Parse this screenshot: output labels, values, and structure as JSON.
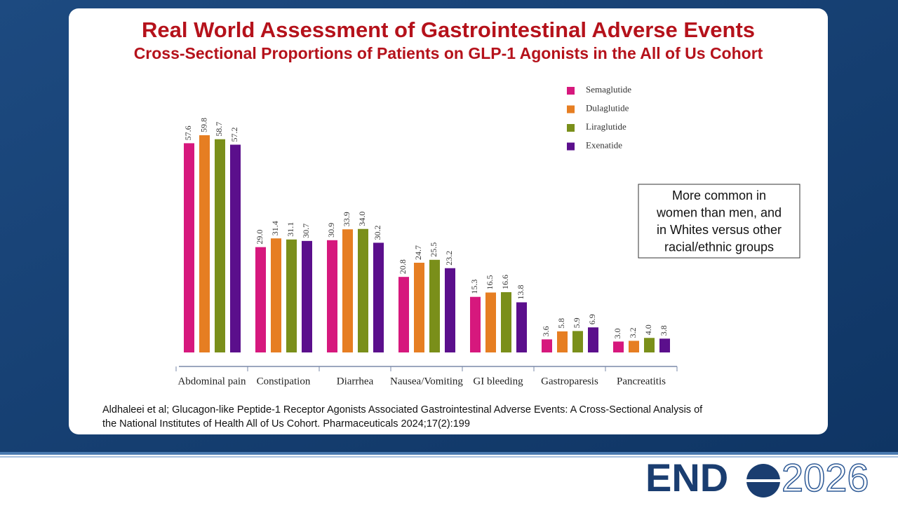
{
  "chart_data": {
    "type": "bar",
    "title": "Real World Assessment of Gastrointestinal Adverse Events",
    "subtitle": "Cross-Sectional Proportions of Patients on GLP-1 Agonists in the All of Us Cohort",
    "categories": [
      "Abdominal pain",
      "Constipation",
      "Diarrhea",
      "Nausea/Vomiting",
      "GI bleeding",
      "Gastroparesis",
      "Pancreatitis"
    ],
    "series": [
      {
        "name": "Semaglutide",
        "color": "#d6187d",
        "values": [
          57.6,
          29.0,
          30.9,
          20.8,
          15.3,
          3.6,
          3.0
        ],
        "value_labels": [
          "57.6",
          "29.0",
          "30.9",
          "20.8",
          "15.3",
          "3.6",
          "3.0"
        ]
      },
      {
        "name": "Dulaglutide",
        "color": "#e67e22",
        "values": [
          59.8,
          31.4,
          33.9,
          24.7,
          16.5,
          5.8,
          3.2
        ],
        "value_labels": [
          "59.8",
          "31.4",
          "33.9",
          "24.7",
          "16.5",
          "5.8",
          "3.2"
        ]
      },
      {
        "name": "Liraglutide",
        "color": "#7a8f1a",
        "values": [
          58.7,
          31.1,
          34.0,
          25.5,
          16.6,
          5.9,
          4.0
        ],
        "value_labels": [
          "58.7",
          "31.1",
          "34.0",
          "25.5",
          "16.6",
          "5.9",
          "4.0"
        ]
      },
      {
        "name": "Exenatide",
        "color": "#5b0f8c",
        "values": [
          57.2,
          30.7,
          30.2,
          23.2,
          13.8,
          6.9,
          3.8
        ],
        "value_labels": [
          "57.2",
          "30.7",
          "30.2",
          "23.2",
          "13.8",
          "6.9",
          "3.8"
        ]
      }
    ],
    "legend": "top-right",
    "annotation": [
      "More common in",
      "women than men, and",
      "in Whites versus other",
      "racial/ethnic groups"
    ],
    "citation": [
      "Aldhaleei et al; Glucagon-like Peptide-1 Receptor Agonists Associated Gastrointestinal Adverse Events: A Cross-Sectional Analysis of",
      "the National Institutes of Health All of Us Cohort.  Pharmaceuticals 2024;17(2):199"
    ]
  },
  "logo": {
    "left": "END",
    "right": "2026"
  }
}
